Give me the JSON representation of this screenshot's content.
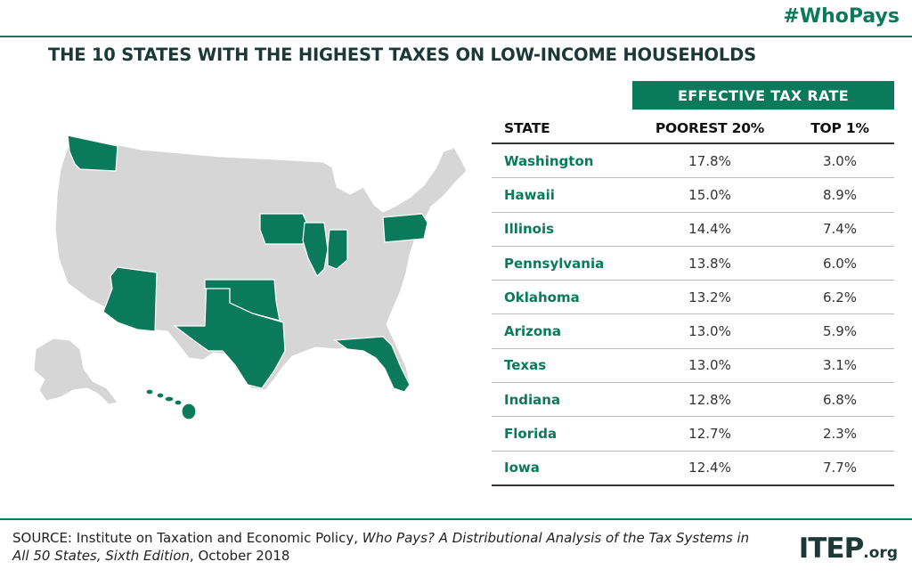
{
  "hashtag": "#WhoPays",
  "title": "THE 10 STATES WITH THE HIGHEST TAXES ON LOW-INCOME HOUSEHOLDS",
  "colors": {
    "accent": "#0a7a5a",
    "map_base": "#d7d6d6",
    "title": "#1b3a36"
  },
  "table": {
    "group_header": "EFFECTIVE TAX RATE",
    "col_state": "STATE",
    "col_poorest": "POOREST 20%",
    "col_top": "TOP 1%"
  },
  "chart_data": {
    "type": "table",
    "title": "THE 10 STATES WITH THE HIGHEST TAXES ON LOW-INCOME HOUSEHOLDS",
    "columns": [
      "STATE",
      "POOREST 20%",
      "TOP 1%"
    ],
    "rows": [
      {
        "state": "Washington",
        "poorest": "17.8%",
        "top": "3.0%"
      },
      {
        "state": "Hawaii",
        "poorest": "15.0%",
        "top": "8.9%"
      },
      {
        "state": "Illinois",
        "poorest": "14.4%",
        "top": "7.4%"
      },
      {
        "state": "Pennsylvania",
        "poorest": "13.8%",
        "top": "6.0%"
      },
      {
        "state": "Oklahoma",
        "poorest": "13.2%",
        "top": "6.2%"
      },
      {
        "state": "Arizona",
        "poorest": "13.0%",
        "top": "5.9%"
      },
      {
        "state": "Texas",
        "poorest": "13.0%",
        "top": "3.1%"
      },
      {
        "state": "Indiana",
        "poorest": "12.8%",
        "top": "6.8%"
      },
      {
        "state": "Florida",
        "poorest": "12.7%",
        "top": "2.3%"
      },
      {
        "state": "Iowa",
        "poorest": "12.4%",
        "top": "7.7%"
      }
    ],
    "highlighted_states": [
      "Washington",
      "Hawaii",
      "Illinois",
      "Pennsylvania",
      "Oklahoma",
      "Arizona",
      "Texas",
      "Indiana",
      "Florida",
      "Iowa"
    ]
  },
  "source": {
    "prefix": "SOURCE: Institute on Taxation and Economic Policy, ",
    "italic": "Who Pays? A Distributional Analysis of the Tax Systems in All 50 States, Sixth Edition",
    "suffix": ", October 2018"
  },
  "logo": {
    "main": "ITEP",
    "suffix": ".org"
  }
}
